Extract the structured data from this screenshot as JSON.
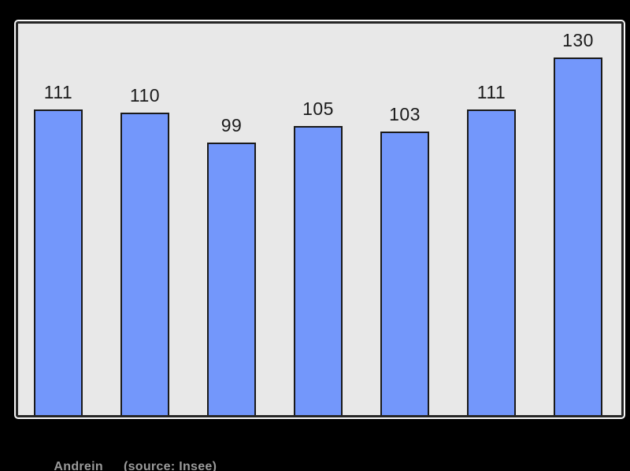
{
  "chart_data": {
    "type": "bar",
    "values": [
      111,
      110,
      99,
      105,
      103,
      111,
      130
    ],
    "bar_labels": [
      "111",
      "110",
      "99",
      "105",
      "103",
      "111",
      "130"
    ],
    "categories": [
      "",
      "",
      "",
      "",
      "",
      "",
      ""
    ],
    "title": "",
    "xlabel": "",
    "ylabel": "",
    "ylim": [
      0,
      142
    ],
    "grid": false,
    "legend": false,
    "bar_color": "#7397fb",
    "bar_border_color": "#1a1a1a",
    "plot_background": "#e8e8e8",
    "page_background": "#000000",
    "label_color": "#1b1b1b"
  },
  "caption": {
    "name": "Andrein",
    "source": "(source: Insee)",
    "color": "#9a9a9a"
  }
}
